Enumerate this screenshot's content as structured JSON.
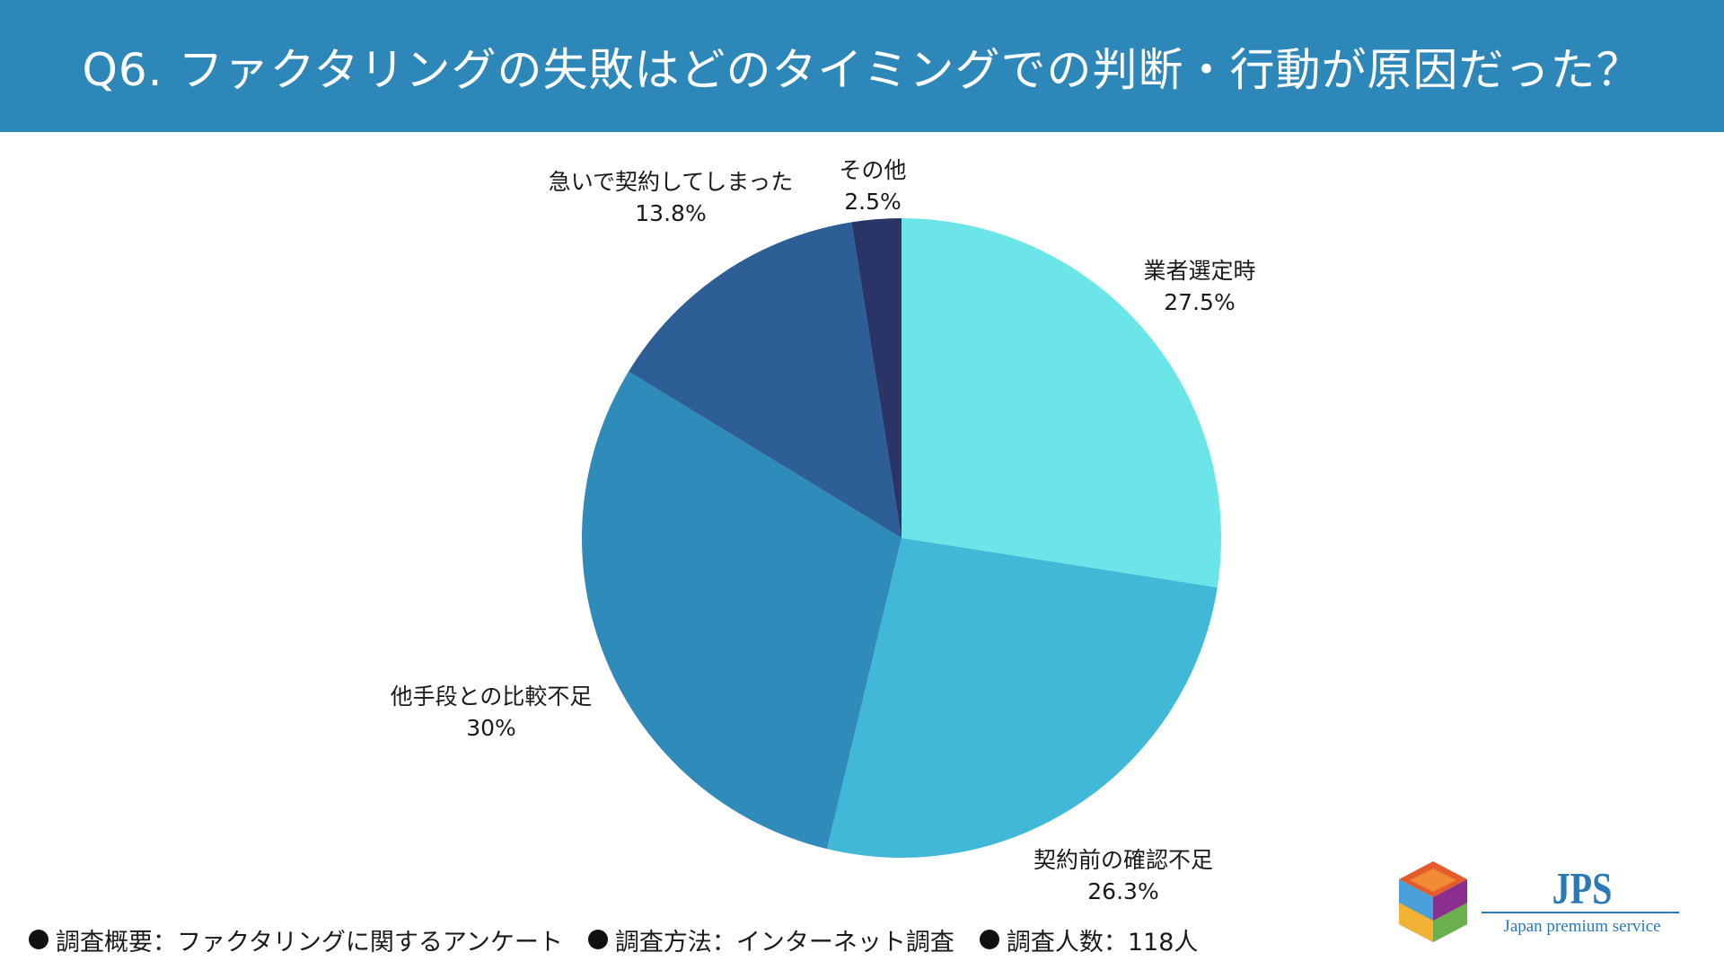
{
  "header": {
    "title": "Q6. ファクタリングの失敗はどのタイミングでの判断・行動が原因だった？"
  },
  "chart_data": {
    "type": "pie",
    "title": "Q6. ファクタリングの失敗はどのタイミングでの判断・行動が原因だった？",
    "slices": [
      {
        "label": "業者選定時",
        "value": 27.5,
        "value_text": "27.5%",
        "color": "#6ce5e8"
      },
      {
        "label": "契約前の確認不足",
        "value": 26.3,
        "value_text": "26.3%",
        "color": "#42b8d8"
      },
      {
        "label": "他手段との比較不足",
        "value": 30,
        "value_text": "30%",
        "color": "#2e8bba"
      },
      {
        "label": "急いで契約してしまった",
        "value": 13.8,
        "value_text": "13.8%",
        "color": "#2e5e96"
      },
      {
        "label": "その他",
        "value": 2.5,
        "value_text": "2.5%",
        "color": "#2b3467"
      }
    ]
  },
  "footer": {
    "notes": [
      "調査概要：ファクタリングに関するアンケート",
      "調査方法：インターネット調査",
      "調査人数：118人"
    ]
  },
  "logo": {
    "name": "JPS",
    "subtitle": "Japan premium service"
  }
}
